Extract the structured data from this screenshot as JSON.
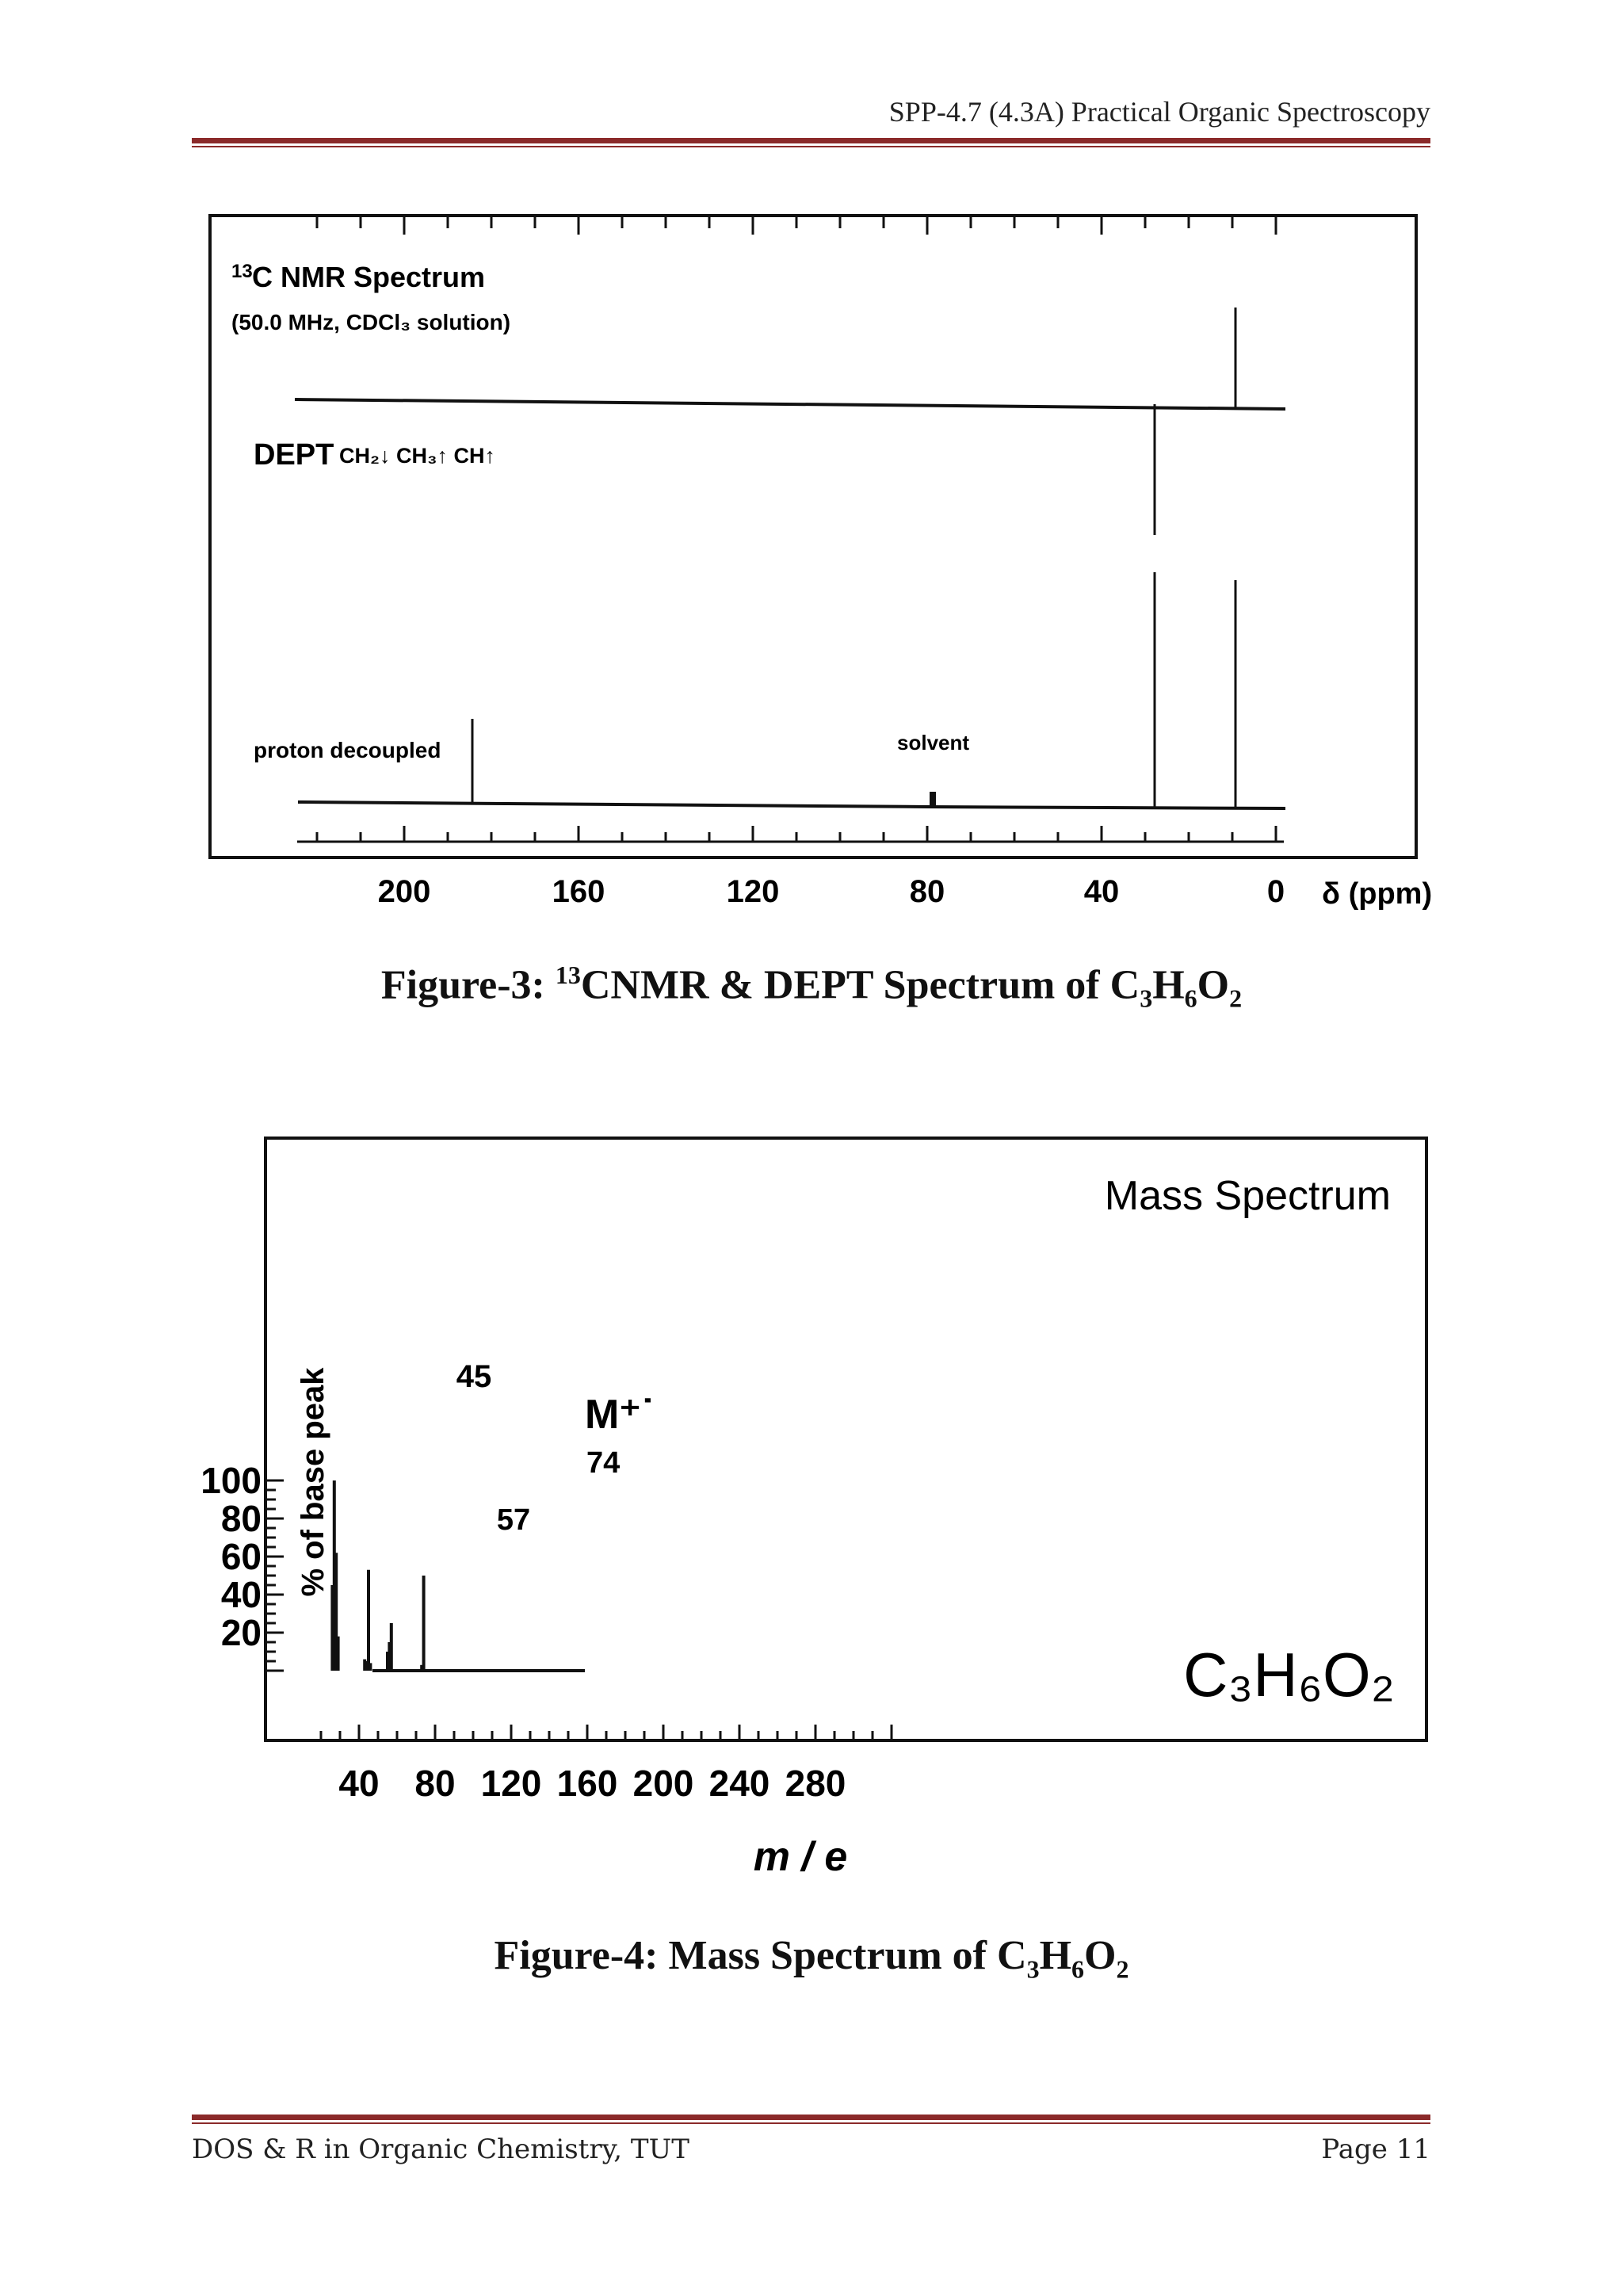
{
  "header": {
    "title": "SPP-4.7 (4.3A) Practical Organic Spectroscopy"
  },
  "footer": {
    "left": "DOS & R in Organic Chemistry, TUT",
    "right": "Page 11"
  },
  "figure3": {
    "caption_prefix": "Figure-3: ",
    "caption_sup": "13",
    "caption_main": "CNMR & DEPT Spectrum of C",
    "formula_sub1": "3",
    "formula_h": "H",
    "formula_sub2": "6",
    "formula_o": "O",
    "formula_sub3": "2",
    "title_sup": "13",
    "title": "C NMR Spectrum",
    "subtitle": "(50.0 MHz, CDCl₃ solution)",
    "dept_label": "DEPT",
    "dept_legend": "CH₂↓ CH₃↑ CH↑",
    "proton_label": "proton decoupled",
    "solvent_label": "solvent",
    "axis_label": "δ (ppm)"
  },
  "figure4": {
    "caption_prefix": "Figure-4: Mass Spectrum of C",
    "formula_sub1": "3",
    "formula_h": "H",
    "formula_sub2": "6",
    "formula_o": "O",
    "formula_sub3": "2",
    "title": "Mass Spectrum",
    "ylabel": "% of base peak",
    "xlabel": "m / e",
    "formula_big": "C₃H₆O₂",
    "m_label": "M⁺˙",
    "peak_labels": [
      "45",
      "57",
      "74"
    ]
  },
  "chart_data": [
    {
      "type": "line",
      "title": "13C NMR Spectrum",
      "xlabel": "δ (ppm)",
      "xlim": [
        220,
        -5
      ],
      "x_ticks": [
        200,
        160,
        120,
        80,
        40,
        0
      ],
      "series": [
        {
          "name": "DEPT",
          "x": [
            27.4,
            9.0
          ],
          "y": [
            -1,
            1
          ]
        },
        {
          "name": "proton decoupled",
          "x": [
            180.6,
            77.0,
            27.4,
            9.0
          ],
          "y": [
            0.45,
            0.1,
            1.0,
            0.95
          ]
        }
      ]
    },
    {
      "type": "bar",
      "title": "Mass Spectrum",
      "xlabel": "m / e",
      "ylabel": "% of base peak",
      "xlim": [
        0,
        320
      ],
      "ylim": [
        0,
        100
      ],
      "x_ticks": [
        40,
        80,
        120,
        160,
        200,
        240,
        280
      ],
      "y_ticks": [
        20,
        40,
        60,
        80,
        100
      ],
      "x": [
        26,
        27,
        28,
        29,
        43,
        44,
        45,
        46,
        55,
        56,
        57,
        73,
        74
      ],
      "values": [
        45,
        100,
        62,
        18,
        6,
        5,
        53,
        4,
        10,
        15,
        25,
        3,
        50
      ]
    }
  ]
}
